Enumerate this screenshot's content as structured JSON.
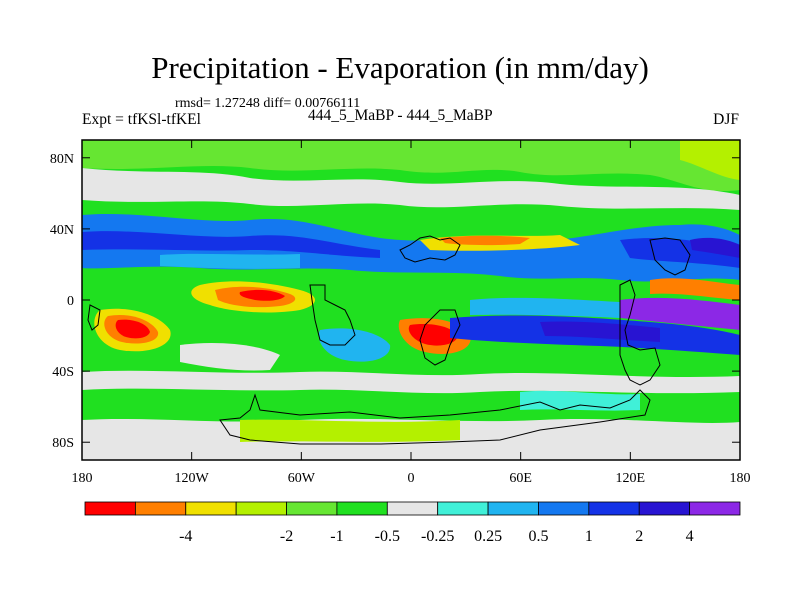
{
  "title": "Precipitation - Evaporation (in mm/day)",
  "stats": "rmsd= 1.27248 diff= 0.00766111",
  "experiment": "Expt = tfKSl-tfKEl",
  "experiment_name": "444_5_MaBP - 444_5_MaBP",
  "season": "DJF",
  "lon_ticks": [
    "180",
    "120W",
    "60W",
    "0",
    "60E",
    "120E",
    "180"
  ],
  "lat_ticks": [
    "80N",
    "40N",
    "0",
    "40S",
    "80S"
  ],
  "colorbar": {
    "colors": [
      "#ff0000",
      "#ff7f00",
      "#f0e000",
      "#b4f000",
      "#66e632",
      "#20e020",
      "#e6e6e6",
      "#40f0d8",
      "#20b4f0",
      "#1478f0",
      "#1432e6",
      "#2814d2",
      "#8c28e6"
    ],
    "labels": [
      "-4",
      "-2",
      "-1",
      "-0.5",
      "-0.25",
      "0.25",
      "0.5",
      "1",
      "2",
      "4"
    ]
  }
}
